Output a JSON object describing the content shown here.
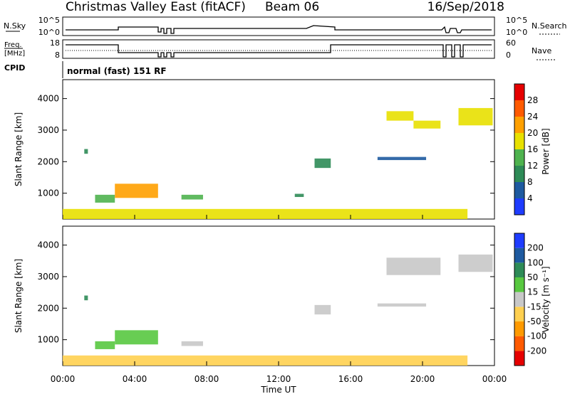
{
  "header": {
    "station": "Christmas Valley East (fitACF)",
    "beam": "Beam 06",
    "date": "16/Sep/2018"
  },
  "summary_panels": {
    "nsky_label": "N.Sky",
    "nsky_ticks": [
      "10^5",
      "10^0"
    ],
    "nsearch_label": "N.Search",
    "nsearch_ticks": [
      "10^5",
      "10^0"
    ],
    "freq_label_1": "Freq.",
    "freq_label_2": "[MHz]",
    "freq_ticks": [
      "18",
      "8"
    ],
    "nave_label": "Nave",
    "nave_ticks": [
      "60",
      "0"
    ],
    "cpid_label": "CPID",
    "cpid_value": "normal (fast) 151 RF"
  },
  "axes": {
    "ylabel": "Slant Range [km]",
    "yticks": [
      "1000",
      "2000",
      "3000",
      "4000"
    ],
    "xlabel": "Time UT",
    "xticks": [
      "00:00",
      "04:00",
      "08:00",
      "12:00",
      "16:00",
      "20:00",
      "00:00"
    ]
  },
  "chart_data": [
    {
      "type": "heatmap",
      "title": "",
      "quantity": "Power",
      "colorbar_label": "Power [dB]",
      "colorbar_ticks": [
        "4",
        "8",
        "12",
        "16",
        "20",
        "24",
        "28"
      ],
      "colorbar_colors": [
        "#1e3cff",
        "#1e5aa0",
        "#2e8b57",
        "#4fb34f",
        "#e8e000",
        "#ffa000",
        "#ff5a00",
        "#e60000"
      ],
      "xlim_hours": [
        0,
        24
      ],
      "ylim_km": [
        180,
        4600
      ],
      "regions": [
        {
          "t0": 1.2,
          "t1": 1.4,
          "r0": 2250,
          "r1": 2400,
          "value": 8
        },
        {
          "t0": 1.8,
          "t1": 2.9,
          "r0": 700,
          "r1": 950,
          "value": 12
        },
        {
          "t0": 2.9,
          "t1": 5.3,
          "r0": 850,
          "r1": 1300,
          "value": 22
        },
        {
          "t0": 6.6,
          "t1": 7.8,
          "r0": 800,
          "r1": 950,
          "value": 14
        },
        {
          "t0": 12.9,
          "t1": 13.4,
          "r0": 880,
          "r1": 980,
          "value": 10
        },
        {
          "t0": 14.0,
          "t1": 14.9,
          "r0": 1800,
          "r1": 2100,
          "value": 9
        },
        {
          "t0": 17.5,
          "t1": 20.2,
          "r0": 2050,
          "r1": 2150,
          "value": 6
        },
        {
          "t0": 18.0,
          "t1": 19.5,
          "r0": 3300,
          "r1": 3600,
          "value": 17
        },
        {
          "t0": 19.5,
          "t1": 21.0,
          "r0": 3050,
          "r1": 3300,
          "value": 19
        },
        {
          "t0": 22.0,
          "t1": 23.9,
          "r0": 3150,
          "r1": 3700,
          "value": 16
        },
        {
          "t0": 0.0,
          "t1": 22.5,
          "r0": 180,
          "r1": 500,
          "value": 18
        }
      ]
    },
    {
      "type": "heatmap",
      "title": "",
      "quantity": "Velocity",
      "colorbar_label": "Velocity [m s⁻¹]",
      "colorbar_ticks": [
        "-200",
        "-100",
        "-50",
        "-15",
        "15",
        "50",
        "100",
        "200"
      ],
      "colorbar_colors": [
        "#e60000",
        "#ff5a00",
        "#ff9a00",
        "#ffd050",
        "#c8c8c8",
        "#58c840",
        "#2e8b57",
        "#1e5aa0",
        "#1e3cff"
      ],
      "xlim_hours": [
        0,
        24
      ],
      "ylim_km": [
        180,
        4600
      ],
      "regions": [
        {
          "t0": 1.2,
          "t1": 1.4,
          "r0": 2250,
          "r1": 2400,
          "value": 80
        },
        {
          "t0": 1.8,
          "t1": 2.9,
          "r0": 700,
          "r1": 950,
          "value": 30
        },
        {
          "t0": 2.9,
          "t1": 5.3,
          "r0": 850,
          "r1": 1300,
          "value": 20
        },
        {
          "t0": 6.6,
          "t1": 7.8,
          "r0": 800,
          "r1": 950,
          "value": 0
        },
        {
          "t0": 14.0,
          "t1": 14.9,
          "r0": 1800,
          "r1": 2100,
          "value": 0
        },
        {
          "t0": 17.5,
          "t1": 20.2,
          "r0": 2050,
          "r1": 2150,
          "value": 0
        },
        {
          "t0": 18.0,
          "t1": 21.0,
          "r0": 3050,
          "r1": 3600,
          "value": 0
        },
        {
          "t0": 22.0,
          "t1": 23.9,
          "r0": 3150,
          "r1": 3700,
          "value": 0
        },
        {
          "t0": 0.0,
          "t1": 22.5,
          "r0": 180,
          "r1": 500,
          "value": -30
        }
      ]
    }
  ]
}
